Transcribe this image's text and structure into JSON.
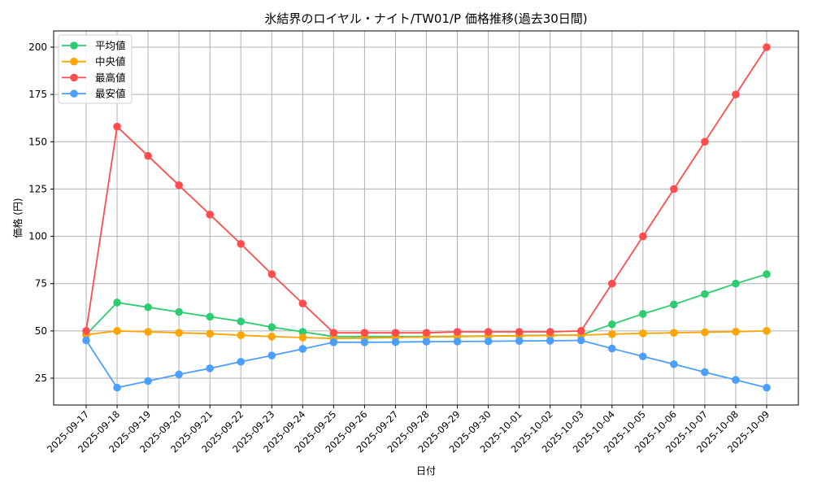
{
  "chart_data": {
    "type": "line",
    "title": "氷結界のロイヤル・ナイト/TW01/P 価格推移(過去30日間)",
    "xlabel": "日付",
    "ylabel": "価格 (円)",
    "ylim": [
      11,
      209
    ],
    "yticks": [
      25,
      50,
      75,
      100,
      125,
      150,
      175,
      200
    ],
    "grid": true,
    "legend_position": "upper left",
    "x": [
      "2025-09-17",
      "2025-09-18",
      "2025-09-19",
      "2025-09-20",
      "2025-09-21",
      "2025-09-22",
      "2025-09-23",
      "2025-09-24",
      "2025-09-25",
      "2025-09-26",
      "2025-09-27",
      "2025-09-28",
      "2025-09-29",
      "2025-09-30",
      "2025-10-01",
      "2025-10-02",
      "2025-10-03",
      "2025-10-04",
      "2025-10-05",
      "2025-10-06",
      "2025-10-07",
      "2025-10-08",
      "2025-10-09"
    ],
    "series": [
      {
        "name": "平均値",
        "color": "#2ecc71",
        "values": [
          48,
          65,
          62.5,
          60,
          57.5,
          55,
          52,
          49.5,
          47,
          47,
          47,
          47,
          47.2,
          47.3,
          47.5,
          47.7,
          47.8,
          53.5,
          59,
          64,
          69.5,
          75,
          80
        ]
      },
      {
        "name": "中央値",
        "color": "#ffa500",
        "values": [
          48,
          50,
          49.5,
          49,
          48.5,
          47.7,
          47,
          46.5,
          46,
          46.2,
          46.5,
          46.8,
          47,
          47.2,
          47.4,
          47.6,
          47.8,
          48.3,
          48.7,
          49,
          49.3,
          49.6,
          50
        ]
      },
      {
        "name": "最高値",
        "color": "#ff4d4d",
        "values": [
          50,
          158,
          142.5,
          127,
          111.5,
          96,
          80,
          64.5,
          49,
          49,
          49,
          49,
          49.5,
          49.5,
          49.5,
          49.5,
          50,
          75,
          100,
          125,
          150,
          175,
          200
        ]
      },
      {
        "name": "最安値",
        "color": "#4d9fff",
        "values": [
          45,
          20,
          23.5,
          27,
          30.2,
          33.7,
          37,
          40.5,
          44,
          44,
          44.1,
          44.3,
          44.4,
          44.5,
          44.7,
          44.8,
          45,
          40.7,
          36.5,
          32.4,
          28.2,
          24.1,
          20
        ]
      }
    ]
  }
}
